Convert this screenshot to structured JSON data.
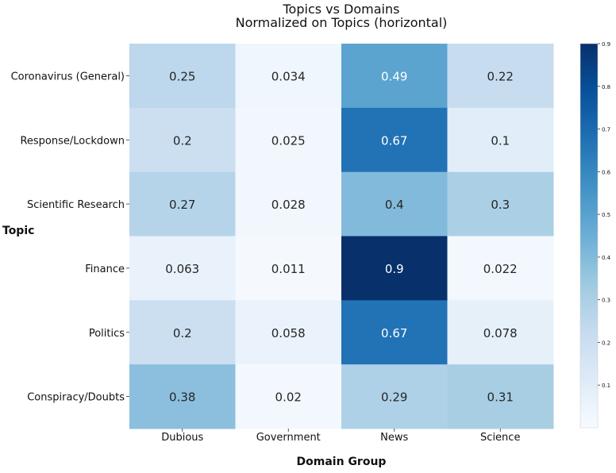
{
  "chart_data": {
    "type": "heatmap",
    "title_line1": "Topics vs Domains",
    "title_line2": "Normalized on Topics (horizontal)",
    "xlabel": "Domain Group",
    "ylabel": "Topic",
    "columns": [
      "Dubious",
      "Government",
      "News",
      "Science"
    ],
    "rows": [
      "Coronavirus (General)",
      "Response/Lockdown",
      "Scientific Research",
      "Finance",
      "Politics",
      "Conspiracy/Doubts"
    ],
    "values": [
      [
        0.25,
        0.034,
        0.49,
        0.22
      ],
      [
        0.2,
        0.025,
        0.67,
        0.1
      ],
      [
        0.27,
        0.028,
        0.4,
        0.3
      ],
      [
        0.063,
        0.011,
        0.9,
        0.022
      ],
      [
        0.2,
        0.058,
        0.67,
        0.078
      ],
      [
        0.38,
        0.02,
        0.29,
        0.31
      ]
    ],
    "cell_labels": [
      [
        "0.25",
        "0.034",
        "0.49",
        "0.22"
      ],
      [
        "0.2",
        "0.025",
        "0.67",
        "0.1"
      ],
      [
        "0.27",
        "0.028",
        "0.4",
        "0.3"
      ],
      [
        "0.063",
        "0.011",
        "0.9",
        "0.022"
      ],
      [
        "0.2",
        "0.058",
        "0.67",
        "0.078"
      ],
      [
        "0.38",
        "0.02",
        "0.29",
        "0.31"
      ]
    ],
    "colormap": "Blues",
    "colorbar": {
      "range": [
        0,
        0.9
      ],
      "ticks": [
        0.1,
        0.2,
        0.3,
        0.4,
        0.5,
        0.6,
        0.7,
        0.8,
        0.9
      ],
      "tick_labels": [
        "0.1",
        "0.2",
        "0.3",
        "0.4",
        "0.5",
        "0.6",
        "0.7",
        "0.8",
        "0.9"
      ]
    }
  }
}
